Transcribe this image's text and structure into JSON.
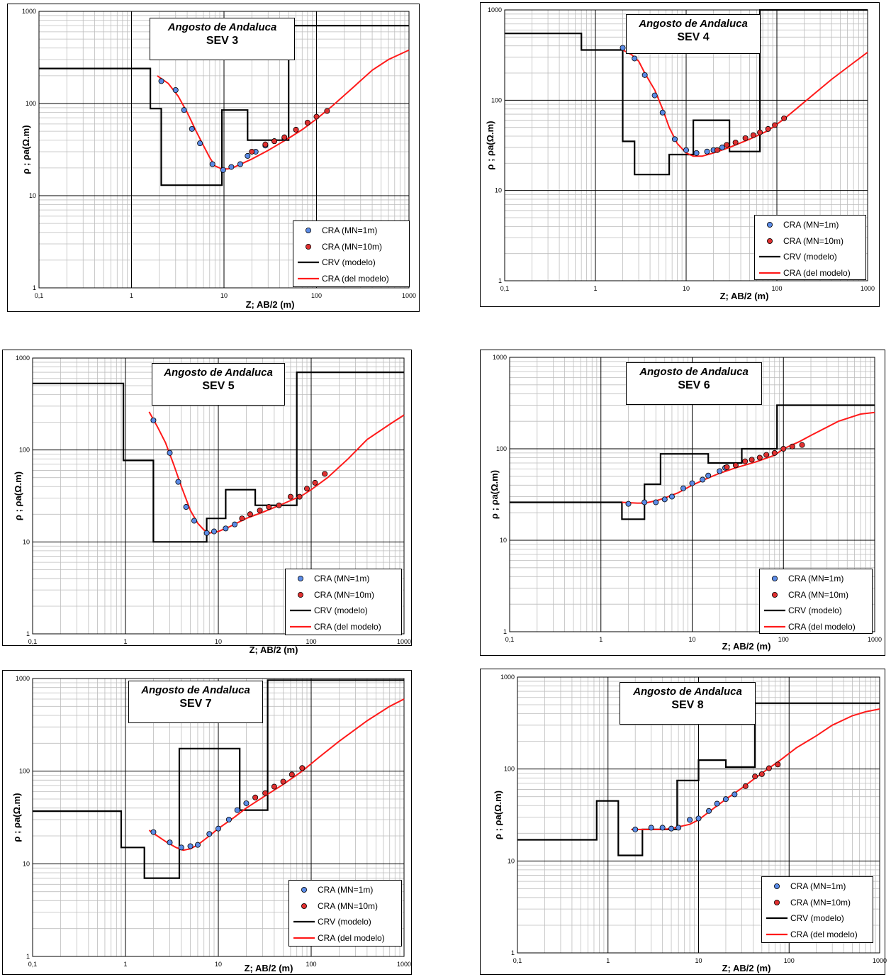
{
  "legend": {
    "cra_mn1": "CRA  (MN=1m)",
    "cra_mn10": "CRA  (MN=10m)",
    "crv_model": "CRV  (modelo)",
    "cra_model": "CRA  (del modelo)"
  },
  "axes": {
    "xlabel": "Z; AB/2 (m)",
    "ylabel": "ρ ; ρa(Ω.m)",
    "x_ticks": [
      "0,1",
      "1",
      "10",
      "100",
      "1000"
    ],
    "y_ticks": [
      "1",
      "10",
      "100",
      "1000"
    ]
  },
  "colors": {
    "mn1": "#5b8be6",
    "mn10": "#e03030",
    "crv": "#000000",
    "cra_model": "#ff1a1a"
  },
  "chart_data": [
    {
      "type": "line",
      "title": "Angosto de Andaluca",
      "subtitle": "SEV 3",
      "xlabel": "Z; AB/2 (m)",
      "ylabel": "ρ ; ρa(Ω.m)",
      "xscale": "log",
      "yscale": "log",
      "xlim": [
        0.1,
        1000
      ],
      "ylim": [
        1,
        1000
      ],
      "legend_position": "bottom-right",
      "crv": [
        [
          0.1,
          240
        ],
        [
          1.6,
          240
        ],
        [
          1.6,
          88
        ],
        [
          2.1,
          88
        ],
        [
          2.1,
          13
        ],
        [
          9.5,
          13
        ],
        [
          9.5,
          85
        ],
        [
          18,
          85
        ],
        [
          18,
          40
        ],
        [
          50,
          40
        ],
        [
          50,
          700
        ],
        [
          1000,
          700
        ]
      ],
      "cra_model": [
        [
          1.9,
          200
        ],
        [
          2.5,
          165
        ],
        [
          3.2,
          120
        ],
        [
          4,
          80
        ],
        [
          5,
          50
        ],
        [
          6,
          35
        ],
        [
          7,
          26
        ],
        [
          8,
          21
        ],
        [
          9.5,
          19.5
        ],
        [
          11,
          19.5
        ],
        [
          13,
          20.5
        ],
        [
          20,
          25
        ],
        [
          30,
          31
        ],
        [
          50,
          42
        ],
        [
          70,
          52
        ],
        [
          100,
          68
        ],
        [
          150,
          95
        ],
        [
          250,
          150
        ],
        [
          400,
          230
        ],
        [
          600,
          300
        ],
        [
          1000,
          380
        ]
      ],
      "mn1": [
        [
          2.1,
          175
        ],
        [
          3,
          140
        ],
        [
          3.7,
          85
        ],
        [
          4.5,
          53
        ],
        [
          5.5,
          37
        ],
        [
          7.5,
          22
        ],
        [
          9.8,
          19
        ],
        [
          12,
          20.5
        ],
        [
          15,
          22
        ],
        [
          18,
          27
        ],
        [
          22,
          30
        ],
        [
          28,
          35
        ],
        [
          35,
          39
        ],
        [
          45,
          42
        ]
      ],
      "mn10": [
        [
          20,
          30
        ],
        [
          28,
          36
        ],
        [
          35,
          39
        ],
        [
          45,
          43
        ],
        [
          60,
          52
        ],
        [
          80,
          62
        ],
        [
          100,
          72
        ],
        [
          130,
          83
        ]
      ]
    },
    {
      "type": "line",
      "title": "Angosto de Andaluca",
      "subtitle": "SEV 4",
      "xlabel": "Z; AB/2 (m)",
      "ylabel": "ρ ; ρa(Ω.m)",
      "xscale": "log",
      "yscale": "log",
      "xlim": [
        0.1,
        1000
      ],
      "ylim": [
        1,
        1000
      ],
      "legend_position": "bottom-right",
      "crv": [
        [
          0.1,
          550
        ],
        [
          0.7,
          550
        ],
        [
          0.7,
          360
        ],
        [
          2,
          360
        ],
        [
          2,
          35
        ],
        [
          2.7,
          35
        ],
        [
          2.7,
          15
        ],
        [
          6.5,
          15
        ],
        [
          6.5,
          25
        ],
        [
          12,
          25
        ],
        [
          12,
          60
        ],
        [
          30,
          60
        ],
        [
          30,
          27
        ],
        [
          65,
          27
        ],
        [
          65,
          1000
        ],
        [
          1000,
          1000
        ]
      ],
      "cra_model": [
        [
          2,
          360
        ],
        [
          2.5,
          320
        ],
        [
          3,
          270
        ],
        [
          3.5,
          200
        ],
        [
          4.5,
          130
        ],
        [
          5.5,
          80
        ],
        [
          6.5,
          50
        ],
        [
          8,
          33
        ],
        [
          10,
          26
        ],
        [
          12,
          24
        ],
        [
          15,
          24
        ],
        [
          20,
          26
        ],
        [
          30,
          30
        ],
        [
          50,
          37
        ],
        [
          80,
          46
        ],
        [
          120,
          62
        ],
        [
          200,
          95
        ],
        [
          400,
          170
        ],
        [
          700,
          260
        ],
        [
          1000,
          340
        ]
      ],
      "mn1": [
        [
          2,
          380
        ],
        [
          2.7,
          290
        ],
        [
          3.5,
          190
        ],
        [
          4.5,
          113
        ],
        [
          5.5,
          73
        ],
        [
          7.5,
          37
        ],
        [
          10,
          28
        ],
        [
          13,
          26
        ],
        [
          17,
          27
        ],
        [
          20,
          28
        ],
        [
          25,
          30
        ]
      ],
      "mn10": [
        [
          22,
          28
        ],
        [
          28,
          32
        ],
        [
          35,
          34
        ],
        [
          45,
          38
        ],
        [
          55,
          41
        ],
        [
          65,
          44
        ],
        [
          80,
          48
        ],
        [
          95,
          53
        ],
        [
          120,
          63
        ]
      ]
    },
    {
      "type": "line",
      "title": "Angosto de Andaluca",
      "subtitle": "SEV 5",
      "xlabel": "Z; AB/2 (m)",
      "ylabel": "ρ ; ρa(Ω.m)",
      "xscale": "log",
      "yscale": "log",
      "xlim": [
        0.1,
        1000
      ],
      "ylim": [
        1,
        1000
      ],
      "legend_position": "bottom-right",
      "crv": [
        [
          0.1,
          530
        ],
        [
          0.95,
          530
        ],
        [
          0.95,
          77
        ],
        [
          2,
          77
        ],
        [
          2,
          10
        ],
        [
          7.5,
          10
        ],
        [
          7.5,
          18
        ],
        [
          12,
          18
        ],
        [
          12,
          37
        ],
        [
          25,
          37
        ],
        [
          25,
          25
        ],
        [
          70,
          25
        ],
        [
          70,
          700
        ],
        [
          1000,
          700
        ]
      ],
      "cra_model": [
        [
          1.8,
          260
        ],
        [
          2.2,
          180
        ],
        [
          2.7,
          120
        ],
        [
          3.3,
          70
        ],
        [
          4,
          40
        ],
        [
          5,
          22
        ],
        [
          6,
          16
        ],
        [
          7,
          13.5
        ],
        [
          8,
          12.5
        ],
        [
          10,
          13
        ],
        [
          13,
          14.5
        ],
        [
          20,
          18
        ],
        [
          30,
          21
        ],
        [
          50,
          26
        ],
        [
          80,
          32
        ],
        [
          100,
          37
        ],
        [
          150,
          50
        ],
        [
          250,
          80
        ],
        [
          400,
          130
        ],
        [
          700,
          190
        ],
        [
          1000,
          240
        ]
      ],
      "mn1": [
        [
          2,
          210
        ],
        [
          3,
          93
        ],
        [
          3.7,
          45
        ],
        [
          4.5,
          24
        ],
        [
          5.5,
          17
        ],
        [
          7.5,
          12.5
        ],
        [
          9,
          13
        ],
        [
          12,
          14
        ],
        [
          15,
          15.5
        ]
      ],
      "mn10": [
        [
          18,
          18
        ],
        [
          22,
          20
        ],
        [
          28,
          22
        ],
        [
          35,
          24
        ],
        [
          45,
          25
        ],
        [
          60,
          31
        ],
        [
          75,
          31
        ],
        [
          90,
          38
        ],
        [
          110,
          44
        ],
        [
          140,
          55
        ]
      ]
    },
    {
      "type": "line",
      "title": "Angosto de Andaluca",
      "subtitle": "SEV 6",
      "xlabel": "Z; AB/2 (m)",
      "ylabel": "ρ ; ρa(Ω.m)",
      "xscale": "log",
      "yscale": "log",
      "xlim": [
        0.1,
        1000
      ],
      "ylim": [
        1,
        1000
      ],
      "legend_position": "bottom-right",
      "crv": [
        [
          0.1,
          26
        ],
        [
          1.7,
          26
        ],
        [
          1.7,
          17
        ],
        [
          3,
          17
        ],
        [
          3,
          41
        ],
        [
          4.5,
          41
        ],
        [
          4.5,
          88
        ],
        [
          15,
          88
        ],
        [
          15,
          70
        ],
        [
          35,
          70
        ],
        [
          35,
          100
        ],
        [
          85,
          100
        ],
        [
          85,
          300
        ],
        [
          1000,
          300
        ]
      ],
      "cra_model": [
        [
          1.7,
          26
        ],
        [
          2.5,
          25.5
        ],
        [
          3,
          25.5
        ],
        [
          4,
          27
        ],
        [
          5,
          29
        ],
        [
          7,
          33
        ],
        [
          10,
          40
        ],
        [
          15,
          48
        ],
        [
          20,
          54
        ],
        [
          30,
          62
        ],
        [
          50,
          72
        ],
        [
          80,
          85
        ],
        [
          100,
          100
        ],
        [
          150,
          120
        ],
        [
          200,
          140
        ],
        [
          400,
          200
        ],
        [
          700,
          240
        ],
        [
          1000,
          250
        ]
      ],
      "mn1": [
        [
          2,
          25
        ],
        [
          3,
          26
        ],
        [
          4,
          26
        ],
        [
          5,
          28
        ],
        [
          6,
          30
        ],
        [
          8,
          37
        ],
        [
          10,
          42
        ],
        [
          13,
          46
        ],
        [
          15,
          51
        ],
        [
          20,
          57
        ],
        [
          23,
          62
        ]
      ],
      "mn10": [
        [
          24,
          63
        ],
        [
          30,
          66
        ],
        [
          38,
          73
        ],
        [
          45,
          76
        ],
        [
          55,
          80
        ],
        [
          65,
          86
        ],
        [
          80,
          90
        ],
        [
          100,
          100
        ],
        [
          125,
          106
        ],
        [
          160,
          110
        ]
      ]
    },
    {
      "type": "line",
      "title": "Angosto de Andaluca",
      "subtitle": "SEV 7",
      "xlabel": "Z; AB/2 (m)",
      "ylabel": "ρ ; ρa(Ω.m)",
      "xscale": "log",
      "yscale": "log",
      "xlim": [
        0.1,
        1000
      ],
      "ylim": [
        1,
        1000
      ],
      "legend_position": "bottom-right",
      "crv": [
        [
          0.1,
          37
        ],
        [
          0.9,
          37
        ],
        [
          0.9,
          15
        ],
        [
          1.6,
          15
        ],
        [
          1.6,
          7
        ],
        [
          3.8,
          7
        ],
        [
          3.8,
          175
        ],
        [
          17,
          175
        ],
        [
          17,
          38
        ],
        [
          34,
          38
        ],
        [
          34,
          960
        ],
        [
          1000,
          960
        ]
      ],
      "cra_model": [
        [
          1.8,
          23
        ],
        [
          2.2,
          20
        ],
        [
          2.8,
          17
        ],
        [
          3.5,
          15
        ],
        [
          4.2,
          14
        ],
        [
          5,
          14.5
        ],
        [
          6,
          16
        ],
        [
          8,
          20
        ],
        [
          10,
          24
        ],
        [
          15,
          32
        ],
        [
          20,
          40
        ],
        [
          30,
          52
        ],
        [
          50,
          72
        ],
        [
          80,
          100
        ],
        [
          120,
          140
        ],
        [
          200,
          210
        ],
        [
          400,
          350
        ],
        [
          700,
          500
        ],
        [
          1000,
          600
        ]
      ],
      "mn1": [
        [
          2,
          22
        ],
        [
          3,
          17
        ],
        [
          4,
          15
        ],
        [
          5,
          15.5
        ],
        [
          6,
          16
        ],
        [
          8,
          21
        ],
        [
          10,
          24
        ],
        [
          13,
          30
        ],
        [
          16,
          38
        ],
        [
          20,
          45
        ]
      ],
      "mn10": [
        [
          25,
          52
        ],
        [
          32,
          58
        ],
        [
          40,
          68
        ],
        [
          50,
          77
        ],
        [
          62,
          92
        ],
        [
          80,
          108
        ]
      ]
    },
    {
      "type": "line",
      "title": "Angosto de Andaluca",
      "subtitle": "SEV 8",
      "xlabel": "Z; AB/2 (m)",
      "ylabel": "ρ ; ρa(Ω.m)",
      "xscale": "log",
      "yscale": "log",
      "xlim": [
        0.1,
        1000
      ],
      "ylim": [
        1,
        1000
      ],
      "legend_position": "bottom-right",
      "crv": [
        [
          0.1,
          17
        ],
        [
          0.75,
          17
        ],
        [
          0.75,
          45
        ],
        [
          1.3,
          45
        ],
        [
          1.3,
          11.5
        ],
        [
          2.4,
          11.5
        ],
        [
          2.4,
          22
        ],
        [
          5.8,
          22
        ],
        [
          5.8,
          75
        ],
        [
          10,
          75
        ],
        [
          10,
          125
        ],
        [
          20,
          125
        ],
        [
          20,
          105
        ],
        [
          42,
          105
        ],
        [
          42,
          520
        ],
        [
          1000,
          520
        ]
      ],
      "cra_model": [
        [
          1.8,
          22
        ],
        [
          3,
          22
        ],
        [
          4,
          22
        ],
        [
          5,
          22.5
        ],
        [
          6,
          23.5
        ],
        [
          8,
          25
        ],
        [
          10,
          28
        ],
        [
          15,
          38
        ],
        [
          20,
          47
        ],
        [
          30,
          62
        ],
        [
          50,
          90
        ],
        [
          80,
          125
        ],
        [
          120,
          170
        ],
        [
          200,
          230
        ],
        [
          300,
          300
        ],
        [
          500,
          380
        ],
        [
          700,
          420
        ],
        [
          1000,
          450
        ]
      ],
      "mn1": [
        [
          2,
          22
        ],
        [
          3,
          23
        ],
        [
          4,
          23
        ],
        [
          5,
          22.5
        ],
        [
          6,
          23
        ],
        [
          8,
          28
        ],
        [
          10,
          29
        ],
        [
          13,
          35
        ],
        [
          16,
          42
        ],
        [
          20,
          47
        ],
        [
          25,
          53
        ]
      ],
      "mn10": [
        [
          33,
          65
        ],
        [
          42,
          83
        ],
        [
          50,
          88
        ],
        [
          60,
          102
        ],
        [
          75,
          112
        ]
      ]
    }
  ]
}
